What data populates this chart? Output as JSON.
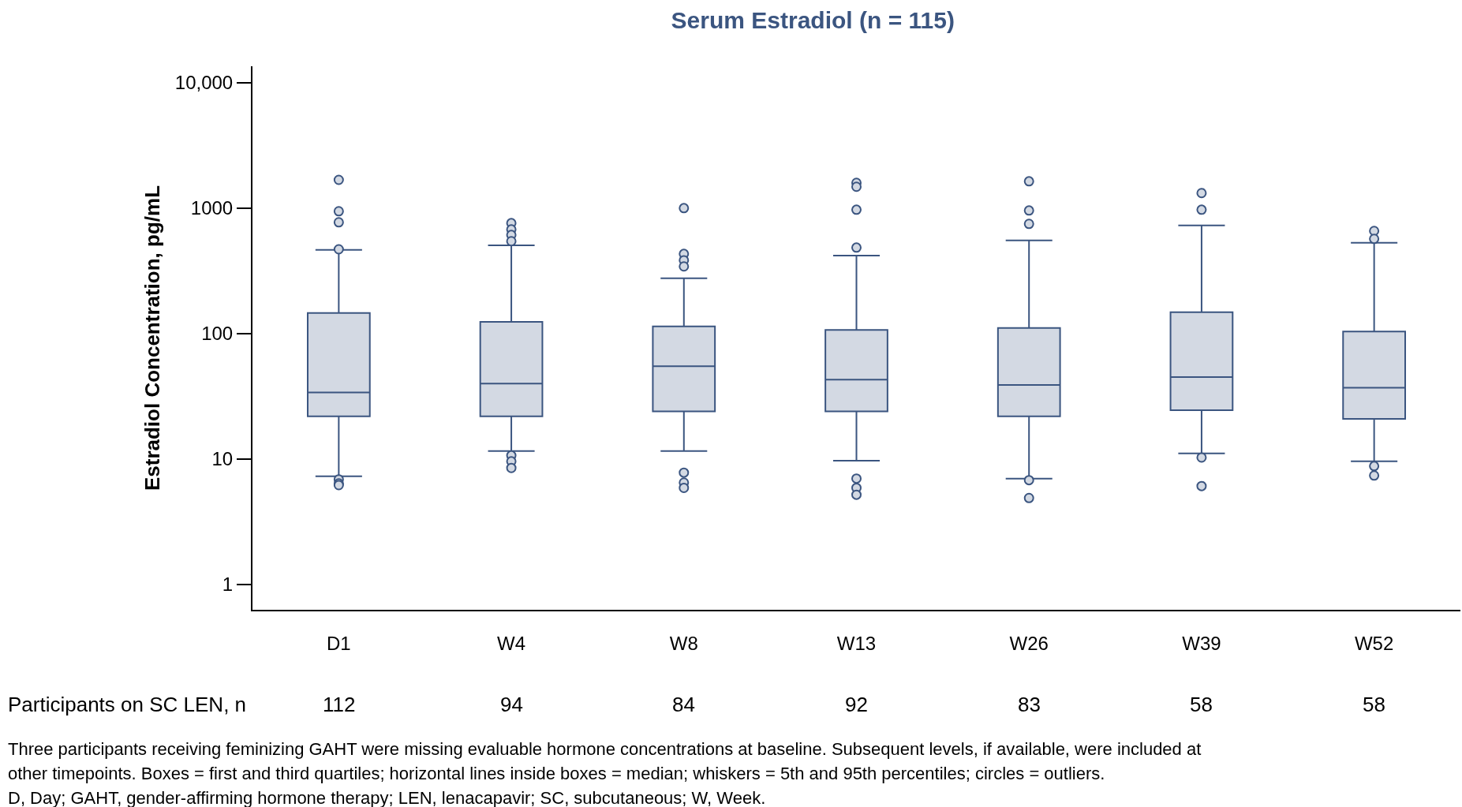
{
  "chart_data": {
    "type": "box",
    "title": "Serum Estradiol (n = 115)",
    "ylabel": "Estradiol Concentration, pg/mL",
    "categories": [
      "D1",
      "W4",
      "W8",
      "W13",
      "W26",
      "W39",
      "W52"
    ],
    "log": true,
    "ylim": [
      0.63,
      13500
    ],
    "yticks": [
      1,
      10,
      100,
      1000,
      {
        "value": 10000,
        "label": "10,000"
      }
    ],
    "series": [
      {
        "color": "#3b5580",
        "boxes": [
          {
            "low": 7.3,
            "q1": 21.9,
            "median": 34,
            "q3": 146,
            "high": 464,
            "outliers": [
              1680,
              944,
              771,
              470,
              6.9,
              6.4,
              6.2
            ]
          },
          {
            "low": 11.6,
            "q1": 21.9,
            "median": 40,
            "q3": 124,
            "high": 506,
            "outliers": [
              759,
              676,
              611,
              545,
              10.7,
              9.6,
              8.5
            ]
          },
          {
            "low": 11.6,
            "q1": 24,
            "median": 55,
            "q3": 114,
            "high": 276,
            "outliers": [
              1000,
              432,
              384,
              343,
              7.8,
              6.5,
              5.9
            ]
          },
          {
            "low": 9.7,
            "q1": 24,
            "median": 43,
            "q3": 107,
            "high": 418,
            "outliers": [
              1590,
              1480,
              971,
              485,
              7.0,
              5.9,
              5.2
            ]
          },
          {
            "low": 7.0,
            "q1": 21.9,
            "median": 39,
            "q3": 111,
            "high": 552,
            "outliers": [
              1636,
              957,
              749,
              6.8,
              4.9
            ]
          },
          {
            "low": 11.1,
            "q1": 24.5,
            "median": 45,
            "q3": 148,
            "high": 728,
            "outliers": [
              1318,
              971,
              10.3,
              6.1
            ]
          },
          {
            "low": 9.6,
            "q1": 20.9,
            "median": 37,
            "q3": 104,
            "high": 529,
            "outliers": [
              658,
              569,
              8.8,
              7.4
            ]
          }
        ]
      }
    ],
    "annotations": [
      "Participants on SC LEN, n",
      "112",
      "94",
      "84",
      "92",
      "83",
      "58",
      "58",
      "Three participants receiving feminizing GAHT were missing evaluable hormone concentrations at baseline. Subsequent levels, if available, were included at",
      "other timepoints. Boxes = first and third quartiles; horizontal lines inside boxes = median; whiskers = 5th and 95th percentiles; circles = outliers.",
      "D, Day; GAHT, gender-affirming hormone therapy; LEN, lenacapavir; SC, subcutaneous; W, Week."
    ]
  }
}
